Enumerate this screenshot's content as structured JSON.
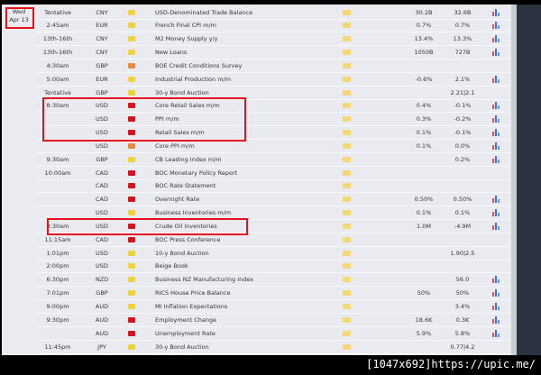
{
  "date": {
    "day": "Wed",
    "date": "Apr 13"
  },
  "impact_colors": {
    "low": "#f2d23a",
    "medium": "#e88a3a",
    "high": "#d8141a"
  },
  "rows": [
    {
      "time": "Tentative",
      "currency": "CNY",
      "impact": "low",
      "event": "USD-Denominated Trade Balance",
      "actual": "30.2B",
      "forecast": "32.6B",
      "chart": true
    },
    {
      "time": "2:45am",
      "currency": "EUR",
      "impact": "low",
      "event": "French Final CPI m/m",
      "actual": "0.7%",
      "forecast": "0.7%",
      "chart": true
    },
    {
      "time": "13th-16th",
      "currency": "CNY",
      "impact": "low",
      "event": "M2 Money Supply y/y",
      "actual": "13.4%",
      "forecast": "13.3%",
      "chart": true
    },
    {
      "time": "13th-16th",
      "currency": "CNY",
      "impact": "low",
      "event": "New Loans",
      "actual": "1050B",
      "forecast": "727B",
      "chart": true
    },
    {
      "time": "4:30am",
      "currency": "GBP",
      "impact": "medium",
      "event": "BOE Credit Conditions Survey",
      "actual": "",
      "forecast": "",
      "chart": false
    },
    {
      "time": "5:00am",
      "currency": "EUR",
      "impact": "low",
      "event": "Industrial Production m/m",
      "actual": "-0.6%",
      "forecast": "2.1%",
      "chart": true
    },
    {
      "time": "Tentative",
      "currency": "GBP",
      "impact": "low",
      "event": "30-y Bond Auction",
      "actual": "",
      "forecast": "2.21|2.1",
      "chart": false
    },
    {
      "time": "8:30am",
      "currency": "USD",
      "impact": "high",
      "event": "Core Retail Sales m/m",
      "actual": "0.4%",
      "forecast": "-0.1%",
      "chart": true
    },
    {
      "time": "",
      "currency": "USD",
      "impact": "high",
      "event": "PPI m/m",
      "actual": "0.3%",
      "forecast": "-0.2%",
      "chart": true
    },
    {
      "time": "",
      "currency": "USD",
      "impact": "high",
      "event": "Retail Sales m/m",
      "actual": "0.1%",
      "forecast": "-0.1%",
      "chart": true
    },
    {
      "time": "",
      "currency": "USD",
      "impact": "medium",
      "event": "Core PPI m/m",
      "actual": "0.1%",
      "forecast": "0.0%",
      "chart": true
    },
    {
      "time": "9:30am",
      "currency": "GBP",
      "impact": "low",
      "event": "CB Leading Index m/m",
      "actual": "",
      "forecast": "0.2%",
      "chart": true
    },
    {
      "time": "10:00am",
      "currency": "CAD",
      "impact": "high",
      "event": "BOC Monetary Policy Report",
      "actual": "",
      "forecast": "",
      "chart": false
    },
    {
      "time": "",
      "currency": "CAD",
      "impact": "high",
      "event": "BOC Rate Statement",
      "actual": "",
      "forecast": "",
      "chart": false
    },
    {
      "time": "",
      "currency": "CAD",
      "impact": "high",
      "event": "Overnight Rate",
      "actual": "0.50%",
      "forecast": "0.50%",
      "chart": true
    },
    {
      "time": "",
      "currency": "USD",
      "impact": "low",
      "event": "Business Inventories m/m",
      "actual": "0.1%",
      "forecast": "0.1%",
      "chart": true
    },
    {
      "time": "0:30am",
      "currency": "USD",
      "impact": "high",
      "event": "Crude Oil Inventories",
      "actual": "1.0M",
      "forecast": "-4.9M",
      "chart": true
    },
    {
      "time": "11:15am",
      "currency": "CAD",
      "impact": "high",
      "event": "BOC Press Conference",
      "actual": "",
      "forecast": "",
      "chart": false
    },
    {
      "time": "1:01pm",
      "currency": "USD",
      "impact": "low",
      "event": "10-y Bond Auction",
      "actual": "",
      "forecast": "1.90|2.5",
      "chart": false
    },
    {
      "time": "2:00pm",
      "currency": "USD",
      "impact": "low",
      "event": "Beige Book",
      "actual": "",
      "forecast": "",
      "chart": false
    },
    {
      "time": "6:30pm",
      "currency": "NZD",
      "impact": "low",
      "event": "Business NZ Manufacturing Index",
      "actual": "",
      "forecast": "56.0",
      "chart": true
    },
    {
      "time": "7:01pm",
      "currency": "GBP",
      "impact": "low",
      "event": "RICS House Price Balance",
      "actual": "50%",
      "forecast": "50%",
      "chart": true
    },
    {
      "time": "9:00pm",
      "currency": "AUD",
      "impact": "low",
      "event": "MI Inflation Expectations",
      "actual": "",
      "forecast": "3.4%",
      "chart": true
    },
    {
      "time": "9:30pm",
      "currency": "AUD",
      "impact": "high",
      "event": "Employment Change",
      "actual": "18.6K",
      "forecast": "0.3K",
      "chart": true
    },
    {
      "time": "",
      "currency": "AUD",
      "impact": "high",
      "event": "Unemployment Rate",
      "actual": "5.9%",
      "forecast": "5.8%",
      "chart": true
    },
    {
      "time": "11:45pm",
      "currency": "JPY",
      "impact": "low",
      "event": "30-y Bond Auction",
      "actual": "",
      "forecast": "0.77|4.2",
      "chart": false
    }
  ],
  "watermark": "[1047x692]https://upic.me/"
}
